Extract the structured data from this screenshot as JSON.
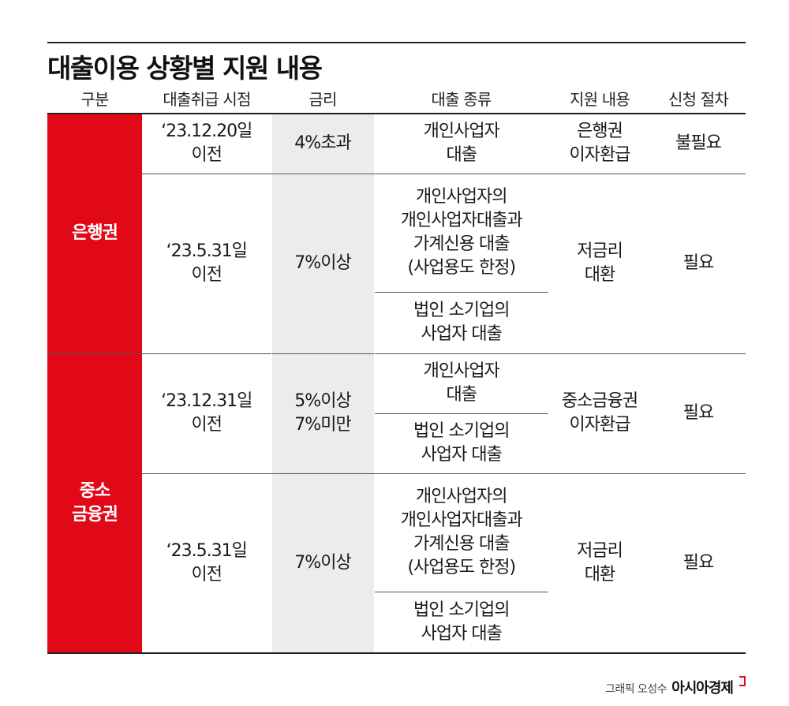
{
  "title": "대출이용 상황별 지원 내용",
  "headers": [
    "구분",
    "대출취급 시점",
    "금리",
    "대출 종류",
    "지원 내용",
    "신청 절차"
  ],
  "sections": [
    {
      "category": "은행권",
      "groups": [
        {
          "period": "‘23.12.20일\n이전",
          "rate": "4%초과",
          "types": [
            "개인사업자\n대출"
          ],
          "support": "은행권\n이자환급",
          "procedure": "불필요"
        },
        {
          "period": "‘23.5.31일\n이전",
          "rate": "7%이상",
          "types": [
            "개인사업자의\n개인사업자대출과\n가계신용 대출\n(사업용도 한정)",
            "법인 소기업의\n사업자 대출"
          ],
          "support": "저금리\n대환",
          "procedure": "필요"
        }
      ]
    },
    {
      "category": "중소\n금융권",
      "groups": [
        {
          "period": "‘23.12.31일\n이전",
          "rate": "5%이상\n7%미만",
          "types": [
            "개인사업자\n대출",
            "법인 소기업의\n사업자 대출"
          ],
          "support": "중소금융권\n이자환급",
          "procedure": "필요"
        },
        {
          "period": "‘23.5.31일\n이전",
          "rate": "7%이상",
          "types": [
            "개인사업자의\n개인사업자대출과\n가계신용 대출\n(사업용도 한정)",
            "법인 소기업의\n사업자 대출"
          ],
          "support": "저금리\n대환",
          "procedure": "필요"
        }
      ]
    }
  ],
  "credit": {
    "text": "그래픽 오성수",
    "brand": "아시아경제"
  },
  "colors": {
    "accent": "#e10918",
    "rate_bg": "#ececec"
  }
}
